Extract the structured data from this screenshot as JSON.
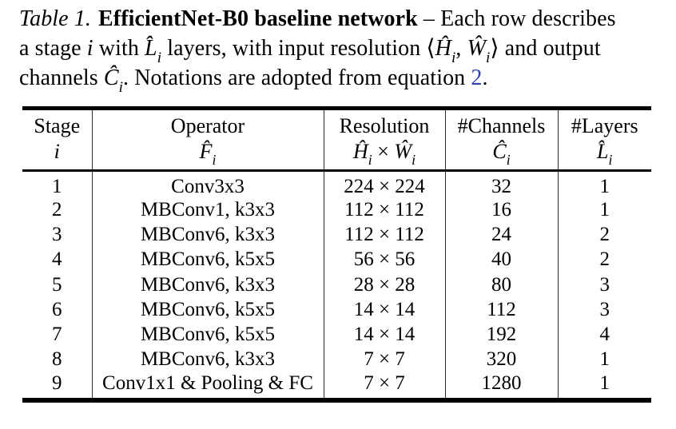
{
  "colors": {
    "text": "#000000",
    "link_blue": "#2c3fb0",
    "rule_black": "#000000",
    "separator_gray": "#2e2e2e"
  },
  "caption": {
    "line1": {
      "label": "Table 1.",
      "title": "EfficientNet-B0 baseline network",
      "rest": " – Each row describes"
    },
    "line2": {
      "t1": "a stage ",
      "i": "i",
      "t2": " with ",
      "Lhat": "L̂",
      "Lsub": "i",
      "t3": " layers, with input resolution ",
      "open": "⟨",
      "Hhat": "Ĥ",
      "Hsub": "i",
      "comma": ", ",
      "What": "Ŵ",
      "Wsub": "i",
      "close": "⟩",
      "t4": " and output"
    },
    "line3": {
      "t1": "channels ",
      "Chat": "Ĉ",
      "Csub": "i",
      "t2": ". Notations are adopted from equation ",
      "link": "2",
      "period": "."
    }
  },
  "table": {
    "headers": {
      "stage": {
        "label": "Stage",
        "symbol": "i"
      },
      "operator": {
        "label": "Operator",
        "symbol": "F̂",
        "sub": "i"
      },
      "resolution": {
        "label": "Resolution",
        "sym1": "Ĥ",
        "sub1": "i",
        "times": " × ",
        "sym2": "Ŵ",
        "sub2": "i"
      },
      "channels": {
        "label": "#Channels",
        "symbol": "Ĉ",
        "sub": "i"
      },
      "layers": {
        "label": "#Layers",
        "symbol": "L̂",
        "sub": "i"
      }
    },
    "rows": [
      {
        "stage": "1",
        "operator": "Conv3x3",
        "resolution": "224 × 224",
        "channels": "32",
        "layers": "1"
      },
      {
        "stage": "2",
        "operator": "MBConv1, k3x3",
        "resolution": "112 × 112",
        "channels": "16",
        "layers": "1"
      },
      {
        "stage": "3",
        "operator": "MBConv6, k3x3",
        "resolution": "112 × 112",
        "channels": "24",
        "layers": "2"
      },
      {
        "stage": "4",
        "operator": "MBConv6, k5x5",
        "resolution": "56 × 56",
        "channels": "40",
        "layers": "2"
      },
      {
        "stage": "5",
        "operator": "MBConv6, k3x3",
        "resolution": "28 × 28",
        "channels": "80",
        "layers": "3"
      },
      {
        "stage": "6",
        "operator": "MBConv6, k5x5",
        "resolution": "14 × 14",
        "channels": "112",
        "layers": "3"
      },
      {
        "stage": "7",
        "operator": "MBConv6, k5x5",
        "resolution": "14 × 14",
        "channels": "192",
        "layers": "4"
      },
      {
        "stage": "8",
        "operator": "MBConv6, k3x3",
        "resolution": "7 × 7",
        "channels": "320",
        "layers": "1"
      },
      {
        "stage": "9",
        "operator": "Conv1x1 & Pooling & FC",
        "resolution": "7 × 7",
        "channels": "1280",
        "layers": "1"
      }
    ]
  }
}
